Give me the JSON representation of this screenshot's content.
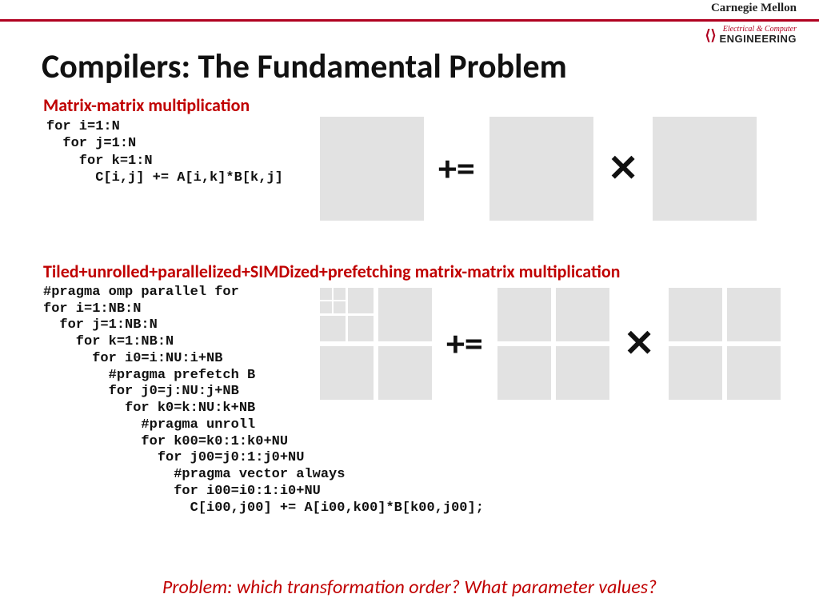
{
  "header": {
    "university": "Carnegie Mellon",
    "dept_line1": "Electrical & Computer",
    "dept_line2": "ENGINEERING"
  },
  "title": "Compilers: The Fundamental Problem",
  "section1": {
    "heading": "Matrix-matrix multiplication",
    "code": "for i=1:N\n  for j=1:N\n    for k=1:N\n      C[i,j] += A[i,k]*B[k,j]"
  },
  "section2": {
    "heading": "Tiled+unrolled+parallelized+SIMDized+prefetching matrix-matrix multiplication",
    "code": "#pragma omp parallel for\nfor i=1:NB:N\n  for j=1:NB:N\n    for k=1:NB:N\n      for i0=i:NU:i+NB\n        #pragma prefetch B\n        for j0=j:NU:j+NB\n          for k0=k:NU:k+NB\n            #pragma unroll\n            for k00=k0:1:k0+NU\n              for j00=j0:1:j0+NU\n                #pragma vector always\n                for i00=i0:1:i0+NU\n                  C[i00,j00] += A[i00,k00]*B[k00,j00];"
  },
  "operators": {
    "pluseq": "+=",
    "times": "✕"
  },
  "problem": "Problem: which transformation order? What parameter values?",
  "colors": {
    "rule": "#b00020",
    "accent_red": "#c00000",
    "matrix_fill": "#e2e2e2",
    "text": "#111111",
    "bg": "#ffffff"
  }
}
